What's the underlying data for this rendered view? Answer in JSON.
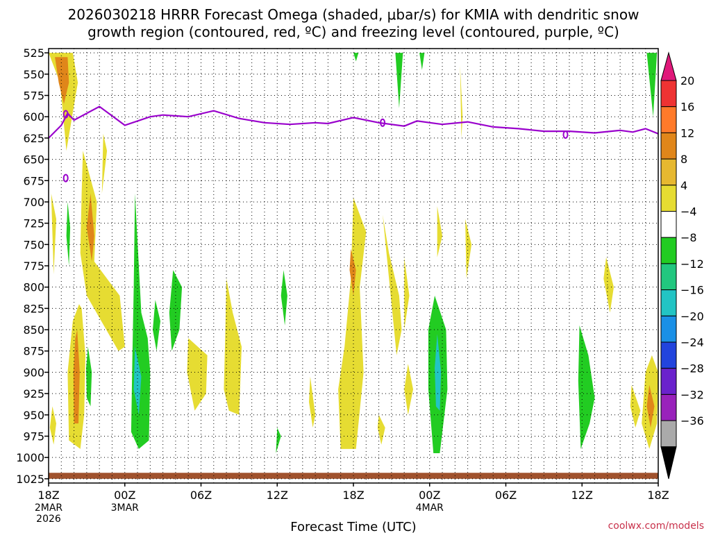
{
  "title_line1": "2026030218 HRRR Forecast Omega (shaded, μbar/s) for KMIA with dendritic snow",
  "title_line2": "growth region (contoured, red, ºC) and freezing level (contoured, purple, ºC)",
  "credit": "coolwx.com/models",
  "chart_data": {
    "type": "heatmap",
    "xlabel": "Forecast Time (UTC)",
    "ylabel": "",
    "x_unit": "forecast hour from 2026030218",
    "xlim": [
      0,
      48
    ],
    "y_unit": "hPa",
    "ylim": [
      1030,
      520
    ],
    "y_ticks": [
      525,
      550,
      575,
      600,
      625,
      650,
      675,
      700,
      725,
      750,
      775,
      800,
      825,
      850,
      875,
      900,
      925,
      950,
      975,
      1000,
      1025
    ],
    "x_ticks": [
      {
        "hour": 0,
        "label": "18Z",
        "sub1": "2MAR",
        "sub2": "2026"
      },
      {
        "hour": 6,
        "label": "00Z",
        "sub1": "3MAR",
        "sub2": ""
      },
      {
        "hour": 12,
        "label": "06Z",
        "sub1": "",
        "sub2": ""
      },
      {
        "hour": 18,
        "label": "12Z",
        "sub1": "",
        "sub2": ""
      },
      {
        "hour": 24,
        "label": "18Z",
        "sub1": "",
        "sub2": ""
      },
      {
        "hour": 30,
        "label": "00Z",
        "sub1": "4MAR",
        "sub2": ""
      },
      {
        "hour": 36,
        "label": "06Z",
        "sub1": "",
        "sub2": ""
      },
      {
        "hour": 42,
        "label": "12Z",
        "sub1": "",
        "sub2": ""
      },
      {
        "hour": 48,
        "label": "18Z",
        "sub1": "",
        "sub2": ""
      }
    ],
    "grid": true,
    "colorbar": {
      "placement": "right",
      "levels": [
        "20",
        "16",
        "12",
        "8",
        "4",
        "−4",
        "−8",
        "−12",
        "−16",
        "−20",
        "−24",
        "−28",
        "−32",
        "−36"
      ],
      "bins": [
        {
          "color": "#ee3333"
        },
        {
          "color": "#ff7a2a"
        },
        {
          "color": "#e0861a"
        },
        {
          "color": "#e6b830"
        },
        {
          "color": "#e6dc32"
        },
        {
          "color": "#ffffff"
        },
        {
          "color": "#22cc22"
        },
        {
          "color": "#22c77f"
        },
        {
          "color": "#22c4c4"
        },
        {
          "color": "#1a90e6"
        },
        {
          "color": "#2244dd"
        },
        {
          "color": "#6a22cc"
        },
        {
          "color": "#9922bb"
        },
        {
          "color": "#aaaaaa"
        }
      ],
      "top_color": "#e0187a",
      "bottom_color": "#000000"
    },
    "omega_regions": [
      {
        "value": 6,
        "color": "#e6dc32",
        "x": [
          0.0,
          1.9,
          2.3,
          1.4,
          0.9
        ],
        "y": [
          525,
          525,
          560,
          640,
          560
        ]
      },
      {
        "value": 12,
        "color": "#e0861a",
        "x": [
          0.5,
          1.5,
          1.6,
          1.2,
          0.8
        ],
        "y": [
          530,
          530,
          560,
          585,
          560
        ]
      },
      {
        "value": 6,
        "color": "#e6dc32",
        "x": [
          4.3,
          4.6,
          4.2
        ],
        "y": [
          620,
          640,
          690
        ]
      },
      {
        "value": 6,
        "color": "#e6dc32",
        "x": [
          0.2,
          0.6,
          0.4
        ],
        "y": [
          690,
          720,
          785
        ]
      },
      {
        "value": 6,
        "color": "#e6dc32",
        "x": [
          2.7,
          3.8,
          3.6,
          5.6,
          6.0,
          5.5,
          3.0,
          2.5,
          2.6
        ],
        "y": [
          640,
          700,
          770,
          810,
          870,
          875,
          810,
          760,
          690
        ]
      },
      {
        "value": 12,
        "color": "#e0861a",
        "x": [
          3.3,
          3.6,
          3.4,
          3.0
        ],
        "y": [
          690,
          740,
          770,
          730
        ]
      },
      {
        "value": -6,
        "color": "#22cc22",
        "x": [
          1.5,
          1.7,
          1.6,
          1.4
        ],
        "y": [
          700,
          730,
          775,
          740
        ]
      },
      {
        "value": 6,
        "color": "#e6dc32",
        "x": [
          2.6,
          2.9,
          2.8,
          2.5,
          1.6,
          1.5,
          1.9,
          2.4
        ],
        "y": [
          825,
          880,
          950,
          990,
          980,
          900,
          840,
          820
        ]
      },
      {
        "value": 12,
        "color": "#e0861a",
        "x": [
          2.25,
          2.45,
          2.35,
          2.0,
          1.95,
          2.1
        ],
        "y": [
          850,
          900,
          960,
          960,
          900,
          860
        ]
      },
      {
        "value": 6,
        "color": "#e6dc32",
        "x": [
          0.3,
          0.6,
          0.4,
          0.1
        ],
        "y": [
          940,
          960,
          985,
          965
        ]
      },
      {
        "value": -6,
        "color": "#22cc22",
        "x": [
          3.1,
          3.4,
          3.3,
          3.0,
          2.95
        ],
        "y": [
          870,
          900,
          940,
          930,
          895
        ]
      },
      {
        "value": -6,
        "color": "#22cc22",
        "x": [
          6.8,
          7.3,
          7.8,
          8.0,
          7.9,
          7.1,
          6.5,
          6.6,
          6.7
        ],
        "y": [
          690,
          830,
          860,
          900,
          980,
          990,
          970,
          880,
          800
        ]
      },
      {
        "value": -12,
        "color": "#22c4c4",
        "x": [
          6.8,
          7.3,
          7.1,
          6.7
        ],
        "y": [
          870,
          905,
          950,
          920
        ]
      },
      {
        "value": -6,
        "color": "#22cc22",
        "x": [
          8.4,
          8.8,
          8.5,
          8.2
        ],
        "y": [
          815,
          840,
          875,
          850
        ]
      },
      {
        "value": -6,
        "color": "#22cc22",
        "x": [
          9.8,
          10.5,
          10.3,
          9.7,
          9.5
        ],
        "y": [
          780,
          800,
          850,
          875,
          830
        ]
      },
      {
        "value": 6,
        "color": "#e6dc32",
        "x": [
          11.0,
          12.5,
          12.4,
          11.5,
          10.9
        ],
        "y": [
          860,
          880,
          925,
          945,
          900
        ]
      },
      {
        "value": 6,
        "color": "#e6dc32",
        "x": [
          14.0,
          14.5,
          15.2,
          15.0,
          14.2,
          13.8,
          13.9
        ],
        "y": [
          790,
          830,
          870,
          950,
          945,
          920,
          860
        ]
      },
      {
        "value": -6,
        "color": "#22cc22",
        "x": [
          18.5,
          18.8,
          18.6,
          18.3
        ],
        "y": [
          780,
          810,
          845,
          810
        ]
      },
      {
        "value": -6,
        "color": "#22cc22",
        "x": [
          18.0,
          18.3,
          17.9
        ],
        "y": [
          965,
          975,
          995
        ]
      },
      {
        "value": 6,
        "color": "#e6dc32",
        "x": [
          20.6,
          21.0,
          20.8,
          20.5
        ],
        "y": [
          905,
          950,
          965,
          935
        ]
      },
      {
        "value": 6,
        "color": "#e6dc32",
        "x": [
          24.0,
          25.0,
          24.5,
          24.8,
          24.2,
          23.0,
          22.8,
          23.3,
          23.8
        ],
        "y": [
          695,
          735,
          800,
          900,
          990,
          990,
          920,
          870,
          790
        ]
      },
      {
        "value": 12,
        "color": "#e0861a",
        "x": [
          23.8,
          24.2,
          24.0,
          23.7
        ],
        "y": [
          755,
          780,
          810,
          780
        ]
      },
      {
        "value": 6,
        "color": "#e6dc32",
        "x": [
          26.3,
          26.8,
          27.6,
          27.8,
          27.4,
          26.6
        ],
        "y": [
          715,
          760,
          810,
          850,
          880,
          760
        ]
      },
      {
        "value": 6,
        "color": "#e6dc32",
        "x": [
          28.0,
          28.4,
          28.0
        ],
        "y": [
          765,
          810,
          850
        ]
      },
      {
        "value": 6,
        "color": "#e6dc32",
        "x": [
          26.0,
          26.5,
          26.2,
          25.9
        ],
        "y": [
          950,
          965,
          985,
          965
        ]
      },
      {
        "value": 6,
        "color": "#e6dc32",
        "x": [
          28.3,
          28.7,
          28.3,
          28.0
        ],
        "y": [
          890,
          920,
          950,
          920
        ]
      },
      {
        "value": -6,
        "color": "#22cc22",
        "x": [
          30.4,
          31.3,
          31.4,
          30.8,
          30.3,
          29.9,
          29.9
        ],
        "y": [
          810,
          850,
          920,
          995,
          995,
          920,
          850
        ]
      },
      {
        "value": -12,
        "color": "#22c4c4",
        "x": [
          30.6,
          30.9,
          30.8,
          30.5,
          30.4
        ],
        "y": [
          855,
          900,
          945,
          940,
          895
        ]
      },
      {
        "value": 6,
        "color": "#e6dc32",
        "x": [
          30.6,
          31.0,
          30.6
        ],
        "y": [
          705,
          740,
          765
        ]
      },
      {
        "value": 6,
        "color": "#e6dc32",
        "x": [
          32.8,
          33.3,
          32.9
        ],
        "y": [
          720,
          750,
          790
        ]
      },
      {
        "value": -6,
        "color": "#22cc22",
        "x": [
          41.8,
          42.5,
          43.0,
          42.6,
          41.9,
          41.7
        ],
        "y": [
          845,
          880,
          930,
          960,
          990,
          910
        ]
      },
      {
        "value": 6,
        "color": "#e6dc32",
        "x": [
          43.9,
          44.5,
          44.2,
          43.7
        ],
        "y": [
          765,
          800,
          830,
          790
        ]
      },
      {
        "value": 6,
        "color": "#e6dc32",
        "x": [
          45.9,
          46.6,
          46.2,
          45.8
        ],
        "y": [
          915,
          945,
          965,
          940
        ]
      },
      {
        "value": 6,
        "color": "#e6dc32",
        "x": [
          47.5,
          48.0,
          47.9,
          47.3,
          46.7,
          47.0
        ],
        "y": [
          880,
          900,
          960,
          990,
          960,
          900
        ]
      },
      {
        "value": 12,
        "color": "#e0861a",
        "x": [
          47.3,
          47.7,
          47.4,
          47.1
        ],
        "y": [
          915,
          940,
          965,
          940
        ]
      },
      {
        "value": 6,
        "color": "#e6dc32",
        "x": [
          32.4,
          32.6,
          32.5
        ],
        "y": [
          540,
          600,
          625
        ]
      },
      {
        "value": -6,
        "color": "#22cc22",
        "x": [
          24.0,
          24.4,
          24.2
        ],
        "y": [
          525,
          525,
          535
        ]
      },
      {
        "value": -6,
        "color": "#22cc22",
        "x": [
          27.3,
          27.9,
          27.6
        ],
        "y": [
          525,
          525,
          590
        ]
      },
      {
        "value": -6,
        "color": "#22cc22",
        "x": [
          29.2,
          29.6,
          29.4
        ],
        "y": [
          525,
          525,
          545
        ]
      },
      {
        "value": -6,
        "color": "#22cc22",
        "x": [
          47.1,
          47.9,
          47.6
        ],
        "y": [
          525,
          525,
          600
        ]
      }
    ],
    "freezing_level_hPa": {
      "x": [
        0,
        1,
        1.5,
        2,
        4,
        6,
        8,
        9,
        11,
        13,
        15,
        17,
        19,
        21,
        22,
        24,
        26,
        28,
        29,
        31,
        33,
        35,
        37,
        39,
        41,
        43,
        45,
        46,
        47,
        48
      ],
      "y": [
        625,
        610,
        596,
        604,
        588,
        610,
        600,
        598,
        600,
        593,
        602,
        607,
        609,
        607,
        608,
        601,
        607,
        611,
        605,
        609,
        606,
        612,
        614,
        617,
        617,
        619,
        616,
        618,
        614,
        620
      ]
    },
    "freezing_level_loops": [
      {
        "x": 1.35,
        "y": 597
      },
      {
        "x": 1.35,
        "y": 672
      },
      {
        "x": 26.3,
        "y": 607
      },
      {
        "x": 40.7,
        "y": 621
      }
    ],
    "surface_layer": {
      "color": "#a0522d",
      "top_hPa": 1018,
      "bottom_hPa": 1025
    }
  }
}
